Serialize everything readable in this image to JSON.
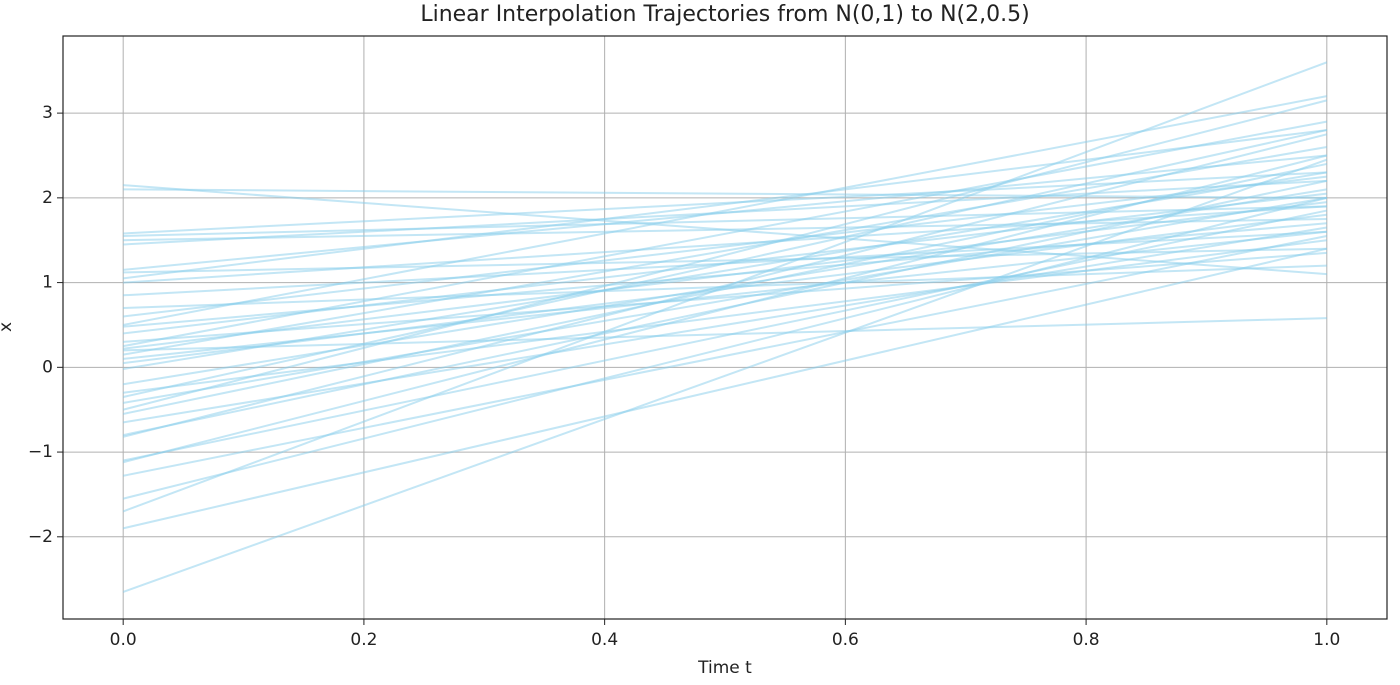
{
  "chart_data": {
    "type": "line",
    "title": "Linear Interpolation Trajectories from N(0,1) to N(2,0.5)",
    "xlabel": "Time t",
    "ylabel": "x",
    "color": "#87ceeb",
    "alpha": 0.5,
    "grid": true,
    "xlim": [
      -0.05,
      1.05
    ],
    "ylim": [
      -2.97,
      3.91
    ],
    "xticks": [
      {
        "value": 0,
        "label": "0.0"
      },
      0.2,
      0.4,
      0.6,
      0.8,
      {
        "value": 1,
        "label": "1.0"
      }
    ],
    "yticks": [
      {
        "value": -2,
        "label": "−2"
      },
      {
        "value": -1,
        "label": "−1"
      },
      0,
      1,
      2,
      3
    ],
    "x": [
      0,
      1
    ],
    "series": [
      {
        "values": [
          2.15,
          1.1
        ]
      },
      {
        "values": [
          2.1,
          2.0
        ]
      },
      {
        "values": [
          1.58,
          2.3
        ]
      },
      {
        "values": [
          1.55,
          1.9
        ]
      },
      {
        "values": [
          1.5,
          1.75
        ]
      },
      {
        "values": [
          1.45,
          2.2
        ]
      },
      {
        "values": [
          1.15,
          2.5
        ]
      },
      {
        "values": [
          1.12,
          1.4
        ]
      },
      {
        "values": [
          1.05,
          2.8
        ]
      },
      {
        "values": [
          0.85,
          1.6
        ]
      },
      {
        "values": [
          0.6,
          2.25
        ]
      },
      {
        "values": [
          0.5,
          3.2
        ]
      },
      {
        "values": [
          0.48,
          1.7
        ]
      },
      {
        "values": [
          0.3,
          1.35
        ]
      },
      {
        "values": [
          0.25,
          2.9
        ]
      },
      {
        "values": [
          0.22,
          1.95
        ]
      },
      {
        "values": [
          0.2,
          0.58
        ]
      },
      {
        "values": [
          0.15,
          2.6
        ]
      },
      {
        "values": [
          0.05,
          1.8
        ]
      },
      {
        "values": [
          -0.02,
          2.3
        ]
      },
      {
        "values": [
          -0.2,
          2.1
        ]
      },
      {
        "values": [
          -0.3,
          1.5
        ]
      },
      {
        "values": [
          -0.42,
          2.0
        ]
      },
      {
        "values": [
          -0.5,
          3.15
        ]
      },
      {
        "values": [
          -0.55,
          2.4
        ]
      },
      {
        "values": [
          -0.65,
          1.65
        ]
      },
      {
        "values": [
          -0.8,
          2.2
        ]
      },
      {
        "values": [
          -0.82,
          2.75
        ]
      },
      {
        "values": [
          -1.1,
          1.85
        ]
      },
      {
        "values": [
          -1.12,
          2.5
        ]
      },
      {
        "values": [
          -1.28,
          1.55
        ]
      },
      {
        "values": [
          -1.55,
          2.0
        ]
      },
      {
        "values": [
          -1.7,
          3.6
        ]
      },
      {
        "values": [
          -1.9,
          1.4
        ]
      },
      {
        "values": [
          -2.65,
          2.45
        ]
      },
      {
        "values": [
          0.7,
          1.2
        ]
      },
      {
        "values": [
          0.4,
          2.05
        ]
      },
      {
        "values": [
          1.0,
          1.9
        ]
      },
      {
        "values": [
          -0.35,
          2.8
        ]
      },
      {
        "values": [
          0.1,
          1.6
        ]
      }
    ]
  }
}
